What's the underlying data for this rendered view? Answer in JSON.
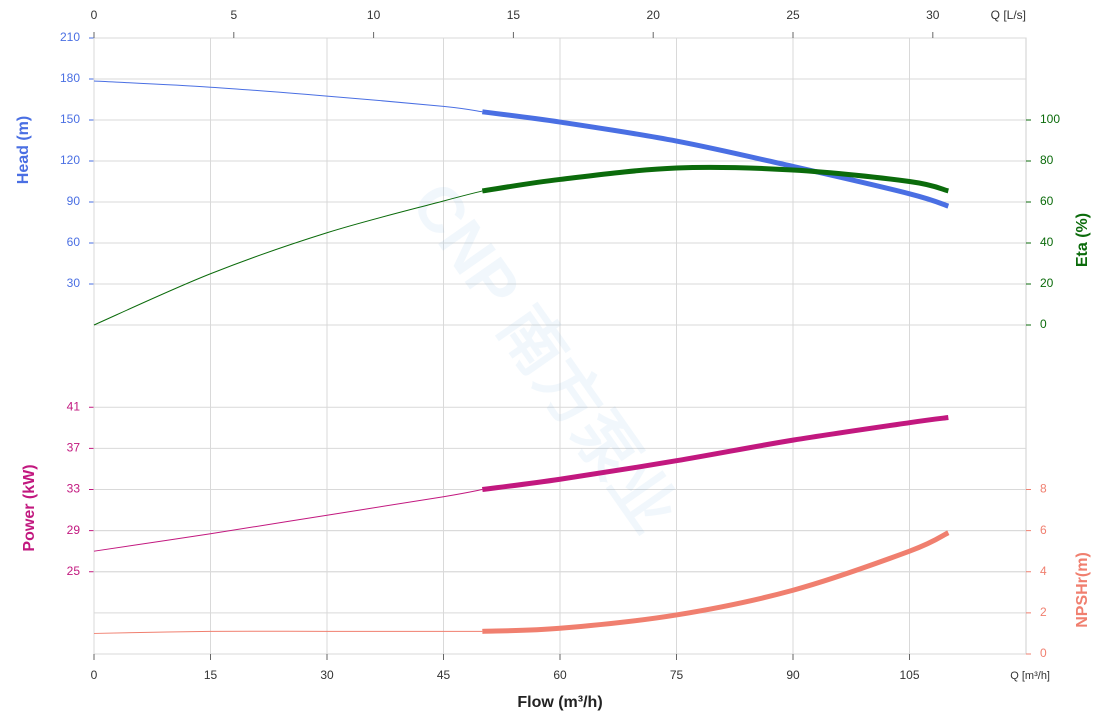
{
  "chart_data": [
    {
      "type": "line",
      "x_axis_label": "Q [L/s]",
      "watermark": "CNP 南方泵业",
      "x": [
        0,
        15,
        30,
        45,
        50,
        60,
        75,
        90,
        105,
        110
      ],
      "xlim": [
        0,
        120
      ],
      "x2lim": [
        0,
        33.333
      ],
      "x2ticks": [
        0,
        5,
        10,
        15,
        20,
        25,
        30
      ],
      "ylim": [
        0,
        210
      ],
      "yticks": [
        30,
        60,
        90,
        120,
        150,
        180,
        210
      ],
      "y2lim": [
        0,
        140
      ],
      "y2ticks": [
        0,
        20,
        40,
        60,
        80,
        100
      ],
      "duty_range": [
        50,
        110
      ],
      "grid": true,
      "series": [
        {
          "name": "Head (m)",
          "color": "#4a6fe3",
          "values": [
            178.5,
            174,
            167.5,
            160,
            156,
            148.5,
            134.6,
            116,
            96,
            87
          ]
        },
        {
          "name": "Eta (%)",
          "color": "#0b6b0b",
          "axis": "y2",
          "values": [
            0,
            25,
            45,
            60.5,
            65.4,
            71,
            76.6,
            75.6,
            70,
            65.4
          ]
        }
      ]
    },
    {
      "type": "line",
      "xlabel": "Flow (m³/h)",
      "x_axis_label": "Q [m³/h]",
      "x": [
        0,
        15,
        30,
        45,
        50,
        60,
        75,
        90,
        105,
        110
      ],
      "xlim": [
        0,
        120
      ],
      "xticks": [
        0,
        15,
        30,
        45,
        60,
        75,
        90,
        105
      ],
      "ylim": [
        17,
        49
      ],
      "yticks": [
        25,
        29,
        33,
        37,
        41
      ],
      "y2lim": [
        0,
        16
      ],
      "y2ticks": [
        0,
        2,
        4,
        6,
        8
      ],
      "duty_range": [
        50,
        110
      ],
      "grid": true,
      "series": [
        {
          "name": "Power (kW)",
          "color": "#c2187f",
          "values": [
            27,
            28.7,
            30.5,
            32.3,
            33,
            34,
            35.8,
            37.8,
            39.5,
            40
          ]
        },
        {
          "name": "NPSHr(m)",
          "color": "#f07f6f",
          "axis": "y2",
          "values": [
            1.0,
            1.1,
            1.1,
            1.1,
            1.1,
            1.25,
            1.9,
            3.1,
            5.0,
            5.9
          ]
        }
      ]
    }
  ]
}
